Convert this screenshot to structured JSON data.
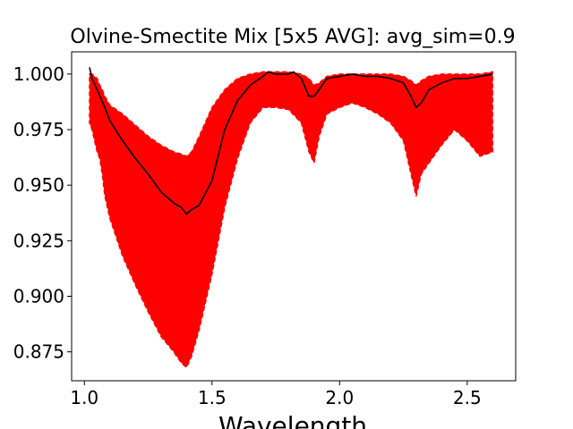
{
  "chart_data": {
    "type": "line",
    "title": "Olvine-Smectite Mix [5x5 AVG]: avg_sim=0.9",
    "xlabel": "Wavelength",
    "ylabel": "",
    "xlim": [
      0.95,
      2.69
    ],
    "ylim": [
      0.862,
      1.01
    ],
    "xticks": [
      1.0,
      1.5,
      2.0,
      2.5
    ],
    "xtick_labels": [
      "1.0",
      "1.5",
      "2.0",
      "2.5"
    ],
    "yticks": [
      0.875,
      0.9,
      0.925,
      0.95,
      0.975,
      1.0
    ],
    "ytick_labels": [
      "0.875",
      "0.900",
      "0.925",
      "0.950",
      "0.975",
      "1.000"
    ],
    "grid": false,
    "legend": "none",
    "colors": {
      "envelope": "#ff0000",
      "average": "#000000"
    },
    "series": [
      {
        "name": "",
        "style": "dashed",
        "color": "#ff0000",
        "x": [
          1.02,
          1.03,
          1.05,
          1.06,
          1.07,
          1.08,
          1.1,
          1.15,
          1.2,
          1.25,
          1.3,
          1.35,
          1.38,
          1.4,
          1.42,
          1.45,
          1.5,
          1.55,
          1.6,
          1.65,
          1.7,
          1.75,
          1.8,
          1.85,
          1.88,
          1.9,
          1.92,
          1.95,
          2.0,
          2.05,
          2.1,
          2.15,
          2.2,
          2.25,
          2.28,
          2.3,
          2.32,
          2.35,
          2.4,
          2.45,
          2.5,
          2.55,
          2.6
        ],
        "upper": [
          1.0,
          1.0,
          0.998,
          0.995,
          0.993,
          0.99,
          0.986,
          0.982,
          0.977,
          0.972,
          0.968,
          0.965,
          0.964,
          0.963,
          0.965,
          0.972,
          0.985,
          0.993,
          0.998,
          1.0,
          1.001,
          1.001,
          1.001,
          1.0,
          0.998,
          0.995,
          0.996,
          0.999,
          1.0,
          1.0,
          1.0,
          1.0,
          1.0,
          0.999,
          0.997,
          0.995,
          0.997,
          0.999,
          1.0,
          1.0,
          1.0,
          1.0,
          1.001
        ],
        "lower": [
          0.978,
          0.975,
          0.965,
          0.962,
          0.955,
          0.945,
          0.935,
          0.918,
          0.905,
          0.893,
          0.882,
          0.875,
          0.87,
          0.868,
          0.873,
          0.885,
          0.91,
          0.94,
          0.962,
          0.978,
          0.985,
          0.985,
          0.984,
          0.978,
          0.965,
          0.96,
          0.972,
          0.982,
          0.985,
          0.987,
          0.985,
          0.982,
          0.978,
          0.97,
          0.955,
          0.945,
          0.955,
          0.96,
          0.968,
          0.975,
          0.97,
          0.963,
          0.965
        ]
      },
      {
        "name": "",
        "style": "solid",
        "color": "#000000",
        "x": [
          1.02,
          1.03,
          1.05,
          1.08,
          1.1,
          1.15,
          1.2,
          1.25,
          1.3,
          1.35,
          1.38,
          1.4,
          1.42,
          1.45,
          1.5,
          1.55,
          1.6,
          1.65,
          1.7,
          1.72,
          1.75,
          1.8,
          1.82,
          1.85,
          1.88,
          1.9,
          1.92,
          1.95,
          2.0,
          2.05,
          2.1,
          2.15,
          2.2,
          2.25,
          2.28,
          2.3,
          2.32,
          2.35,
          2.4,
          2.45,
          2.5,
          2.55,
          2.6
        ],
        "y": [
          1.003,
          0.998,
          0.993,
          0.985,
          0.979,
          0.97,
          0.962,
          0.955,
          0.947,
          0.942,
          0.94,
          0.937,
          0.939,
          0.941,
          0.952,
          0.975,
          0.988,
          0.995,
          0.999,
          1.001,
          1.0,
          1.0,
          1.001,
          0.998,
          0.99,
          0.99,
          0.993,
          0.998,
          0.999,
          1.0,
          0.999,
          0.999,
          0.998,
          0.996,
          0.99,
          0.985,
          0.987,
          0.993,
          0.996,
          0.998,
          0.998,
          0.999,
          1.0
        ]
      }
    ]
  }
}
